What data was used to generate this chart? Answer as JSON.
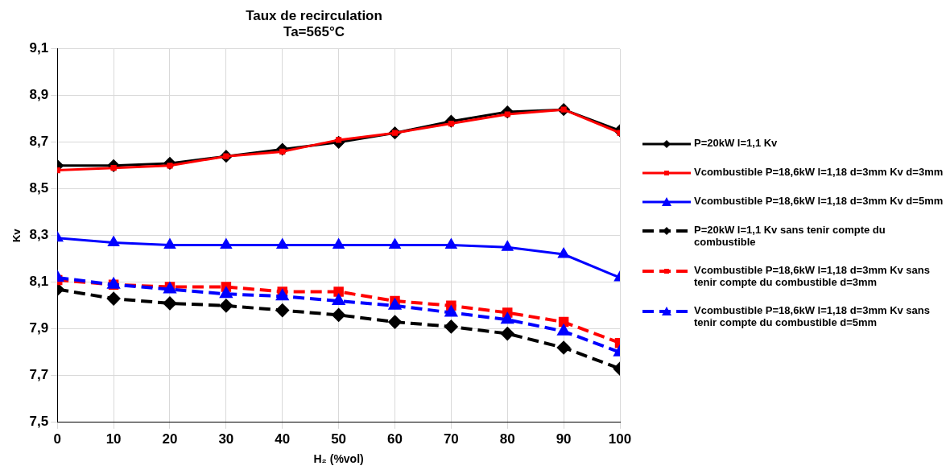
{
  "chart_data": {
    "type": "line",
    "title": "Taux de recirculation",
    "subtitle": "Ta=565°C",
    "xlabel": "H₂ (%vol)",
    "ylabel": "Kv",
    "x": [
      0,
      10,
      20,
      30,
      40,
      50,
      60,
      70,
      80,
      90,
      100
    ],
    "xlim": [
      0,
      100
    ],
    "xticks": [
      0,
      10,
      20,
      30,
      40,
      50,
      60,
      70,
      80,
      90,
      100
    ],
    "ylim": [
      7.5,
      9.1
    ],
    "yticks": [
      {
        "value": 7.5,
        "label": "7,5"
      },
      {
        "value": 7.7,
        "label": "7,7"
      },
      {
        "value": 7.9,
        "label": "7,9"
      },
      {
        "value": 8.1,
        "label": "8,1"
      },
      {
        "value": 8.3,
        "label": "8,3"
      },
      {
        "value": 8.5,
        "label": "8,5"
      },
      {
        "value": 8.7,
        "label": "8,7"
      },
      {
        "value": 8.9,
        "label": "8,9"
      },
      {
        "value": 9.1,
        "label": "9,1"
      }
    ],
    "grid": true,
    "legend": "right",
    "series": [
      {
        "name": "P=20kW l=1,1 Kv",
        "color": "#000000",
        "marker": "diamond",
        "line_style": "solid",
        "values": [
          8.6,
          8.6,
          8.61,
          8.64,
          8.67,
          8.7,
          8.74,
          8.79,
          8.83,
          8.84,
          8.75
        ]
      },
      {
        "name": "Vcombustible P=18,6kW l=1,18 d=3mm Kv d=3mm",
        "color": "#ff0000",
        "marker": "square",
        "line_style": "solid",
        "values": [
          8.58,
          8.59,
          8.6,
          8.64,
          8.66,
          8.71,
          8.74,
          8.78,
          8.82,
          8.84,
          8.74
        ]
      },
      {
        "name": "Vcombustible P=18,6kW l=1,18 d=3mm Kv d=5mm",
        "color": "#0000ff",
        "marker": "triangle",
        "line_style": "solid",
        "values": [
          8.29,
          8.27,
          8.26,
          8.26,
          8.26,
          8.26,
          8.26,
          8.26,
          8.25,
          8.22,
          8.12
        ]
      },
      {
        "name": "P=20kW l=1,1 Kv sans tenir compte du combustible",
        "color": "#000000",
        "marker": "diamond",
        "line_style": "dashed",
        "values": [
          8.07,
          8.03,
          8.01,
          8.0,
          7.98,
          7.96,
          7.93,
          7.91,
          7.88,
          7.82,
          7.73
        ]
      },
      {
        "name": "Vcombustible P=18,6kW l=1,18 d=3mm Kv sans tenir compte du combustible d=3mm",
        "color": "#ff0000",
        "marker": "square",
        "line_style": "dashed",
        "values": [
          8.11,
          8.09,
          8.08,
          8.08,
          8.06,
          8.06,
          8.02,
          8.0,
          7.97,
          7.93,
          7.84
        ]
      },
      {
        "name": "Vcombustible P=18,6kW l=1,18 d=3mm Kv sans tenir compte du combustible d=5mm",
        "color": "#0000ff",
        "marker": "triangle",
        "line_style": "dashed",
        "values": [
          8.12,
          8.09,
          8.07,
          8.05,
          8.04,
          8.02,
          8.0,
          7.97,
          7.94,
          7.89,
          7.8
        ]
      }
    ]
  }
}
